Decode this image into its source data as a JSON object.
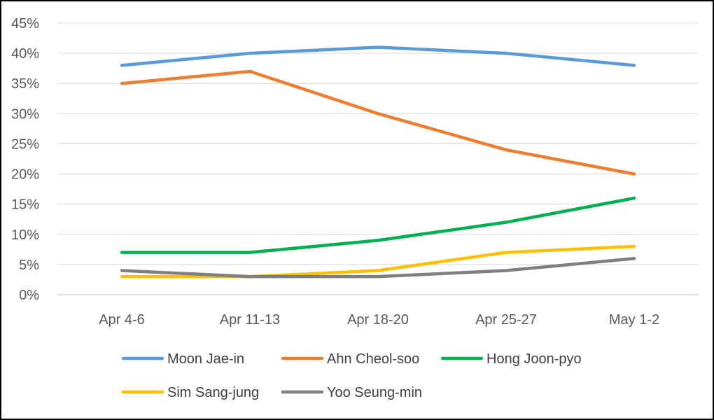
{
  "chart_data": {
    "type": "line",
    "title": "",
    "xlabel": "",
    "ylabel": "",
    "categories": [
      "Apr 4-6",
      "Apr 11-13",
      "Apr 18-20",
      "Apr 25-27",
      "May 1-2"
    ],
    "y_ticks": [
      "0%",
      "5%",
      "10%",
      "15%",
      "20%",
      "25%",
      "30%",
      "35%",
      "40%",
      "45%"
    ],
    "ylim": [
      0,
      45
    ],
    "grid": true,
    "legend_position": "bottom",
    "series": [
      {
        "name": "Moon Jae-in",
        "color": "#5B9BD5",
        "values": [
          38,
          40,
          41,
          40,
          38
        ]
      },
      {
        "name": "Ahn Cheol-soo",
        "color": "#ED7D31",
        "values": [
          35,
          37,
          30,
          24,
          20
        ]
      },
      {
        "name": "Hong Joon-pyo",
        "color": "#00B050",
        "values": [
          7,
          7,
          9,
          12,
          16
        ]
      },
      {
        "name": "Sim Sang-jung",
        "color": "#FFC000",
        "values": [
          3,
          3,
          4,
          7,
          8
        ]
      },
      {
        "name": "Yoo Seung-min",
        "color": "#7F7F7F",
        "values": [
          4,
          3,
          3,
          4,
          6
        ]
      }
    ]
  }
}
